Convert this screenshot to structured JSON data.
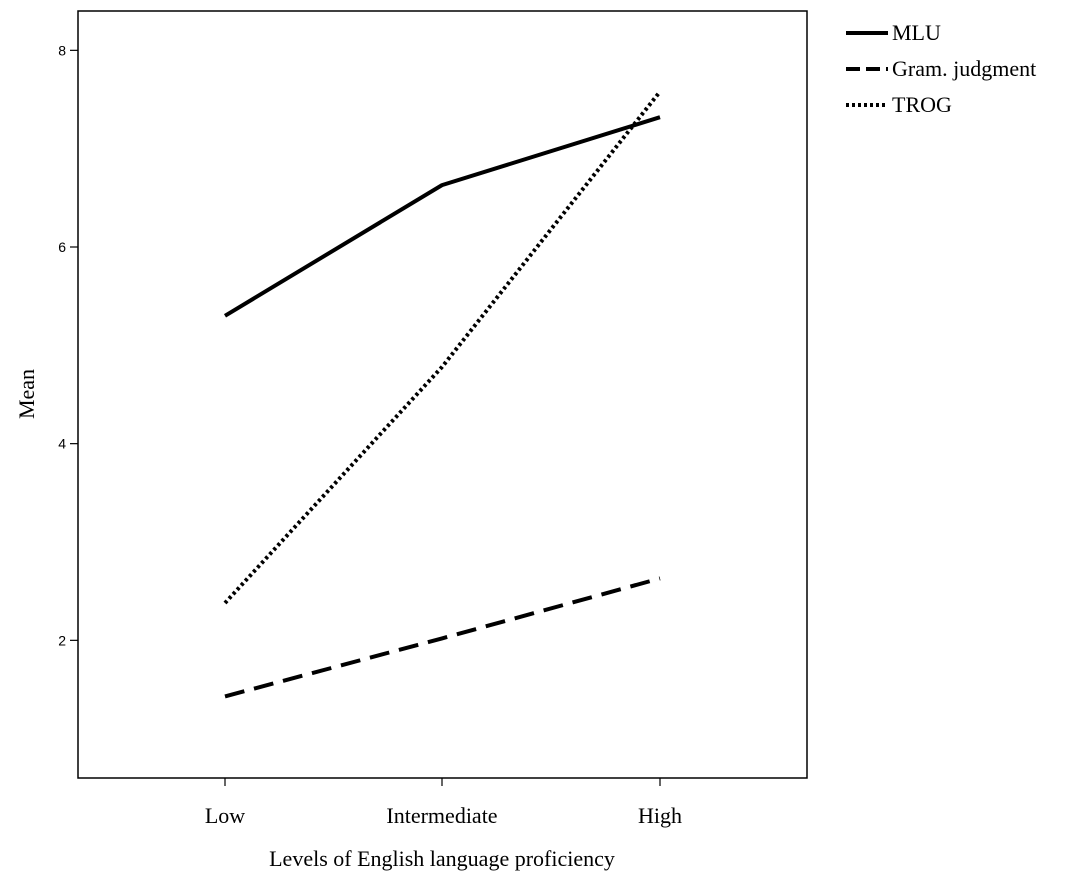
{
  "chart_data": {
    "type": "line",
    "title": "",
    "xlabel": "Levels of English language proficiency",
    "ylabel": "Mean",
    "categories": [
      "Low",
      "Intermediate",
      "High"
    ],
    "y_ticks": [
      "2",
      "4",
      "6",
      "8"
    ],
    "ylim": [
      0.6,
      8.4
    ],
    "grid": false,
    "legend_position": "top-right, outside plot",
    "series": [
      {
        "name": "MLU",
        "style": "solid",
        "values": [
          5.3,
          6.63,
          7.32
        ]
      },
      {
        "name": "Gram. judgment",
        "style": "dashed",
        "values": [
          1.43,
          2.02,
          2.63
        ]
      },
      {
        "name": "TROG",
        "style": "dotted",
        "values": [
          2.38,
          4.78,
          7.58
        ]
      }
    ],
    "colors": {
      "line": "#000000",
      "frame": "#000000",
      "background": "#ffffff"
    }
  }
}
